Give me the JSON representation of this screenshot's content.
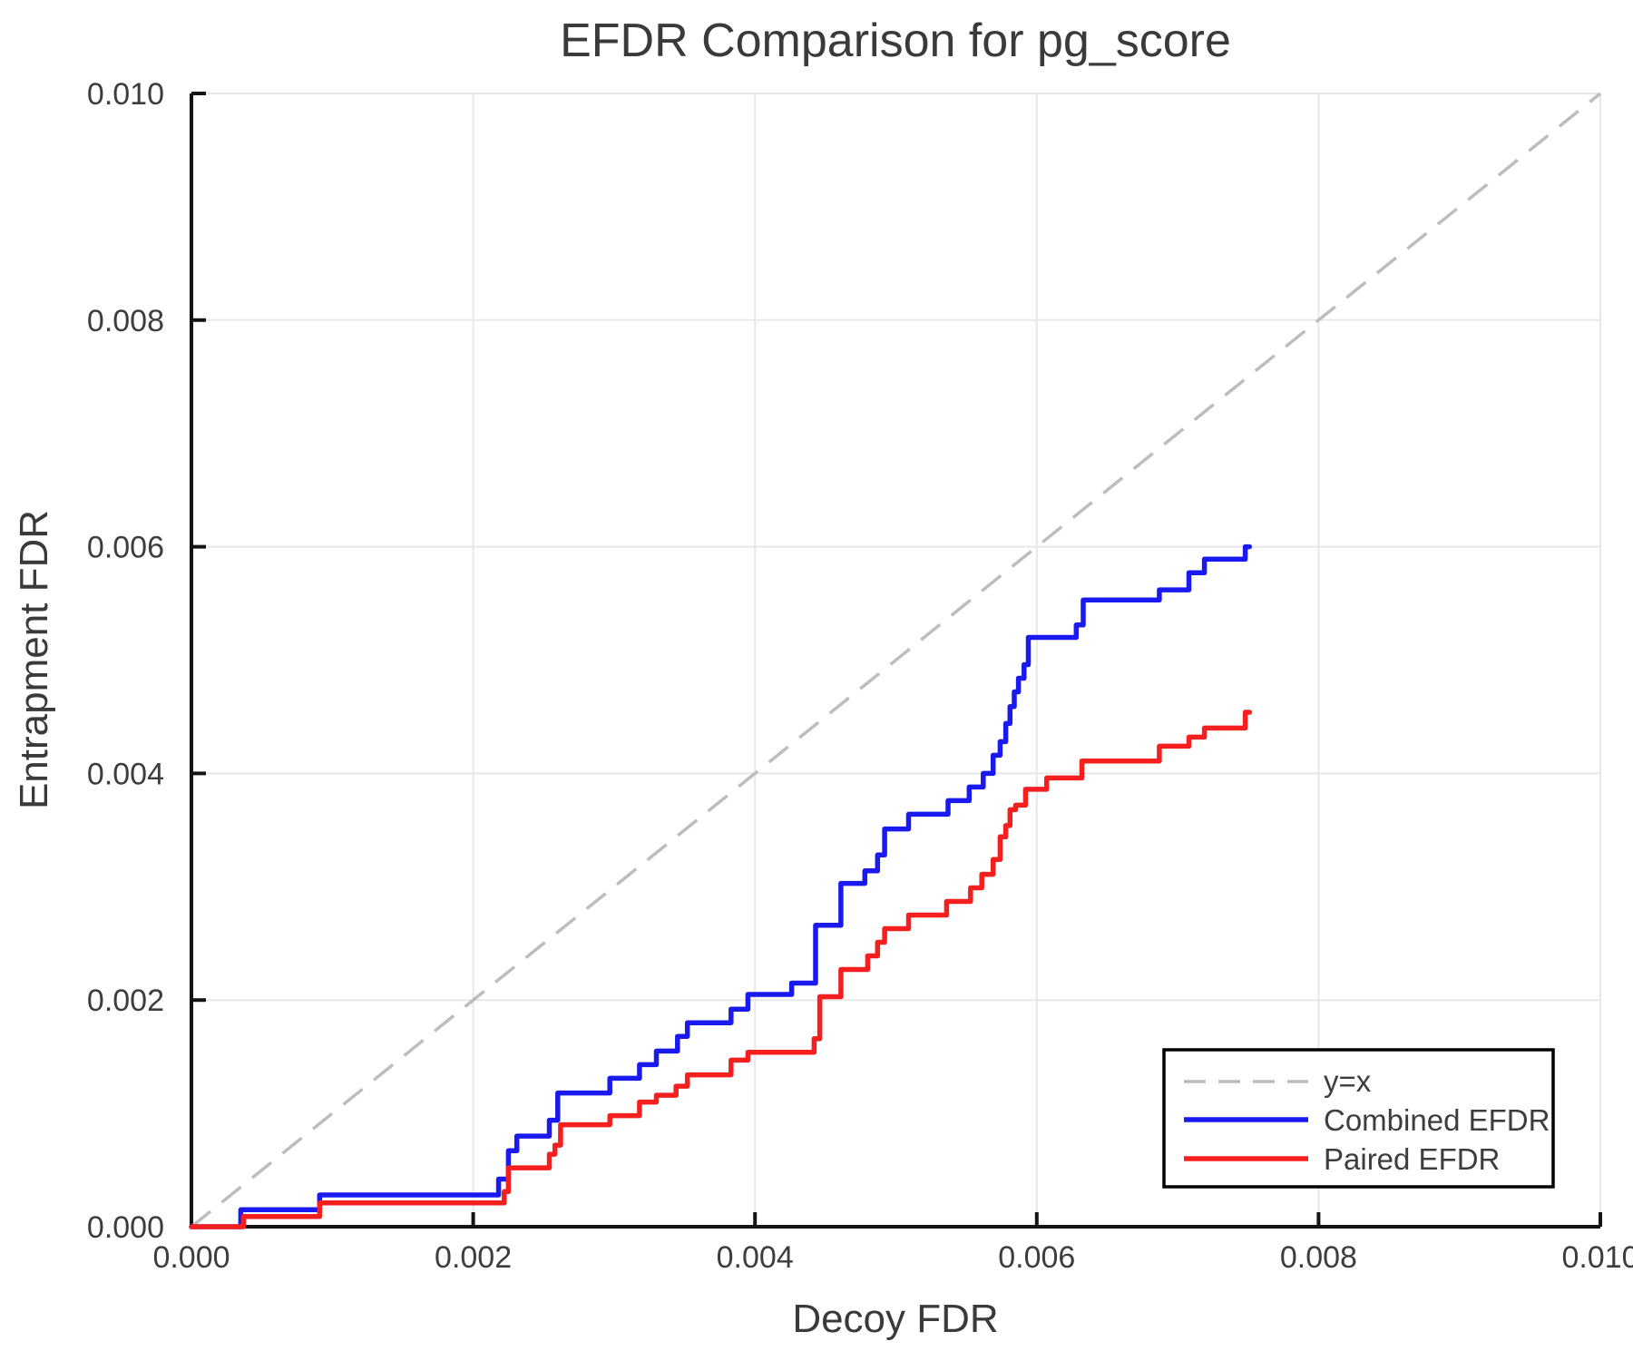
{
  "chart_data": {
    "type": "line",
    "title": "EFDR Comparison for pg_score",
    "xlabel": "Decoy FDR",
    "ylabel": "Entrapment FDR",
    "xlim": [
      0,
      0.01
    ],
    "ylim": [
      0,
      0.01
    ],
    "x_ticks": [
      0,
      0.002,
      0.004,
      0.006,
      0.008,
      0.01
    ],
    "x_tick_labels": [
      "0.000",
      "0.002",
      "0.004",
      "0.006",
      "0.008",
      "0.010"
    ],
    "y_ticks": [
      0,
      0.002,
      0.004,
      0.006,
      0.008,
      0.01
    ],
    "y_tick_labels": [
      "0.000",
      "0.002",
      "0.004",
      "0.006",
      "0.008",
      "0.010"
    ],
    "grid": true,
    "legend_position": "lower right",
    "reference_line": {
      "label": "y=x",
      "from": [
        0,
        0
      ],
      "to": [
        0.01,
        0.01
      ],
      "color": "#bdbdbd",
      "dashed": true
    },
    "series": [
      {
        "name": "Combined EFDR",
        "color": "#1a1af0",
        "step": "post",
        "end_x": 0.00751,
        "points": [
          [
            0.0,
            0.0
          ],
          [
            0.00035,
            0.00015
          ],
          [
            0.00091,
            0.00028
          ],
          [
            0.00218,
            0.00042
          ],
          [
            0.00225,
            0.00067
          ],
          [
            0.00231,
            0.0008
          ],
          [
            0.00254,
            0.00094
          ],
          [
            0.0026,
            0.00118
          ],
          [
            0.00297,
            0.00131
          ],
          [
            0.00318,
            0.00143
          ],
          [
            0.0033,
            0.00155
          ],
          [
            0.00345,
            0.00168
          ],
          [
            0.00352,
            0.0018
          ],
          [
            0.00383,
            0.00192
          ],
          [
            0.00395,
            0.00205
          ],
          [
            0.00426,
            0.00215
          ],
          [
            0.00443,
            0.00266
          ],
          [
            0.00461,
            0.00303
          ],
          [
            0.00478,
            0.00314
          ],
          [
            0.00487,
            0.00328
          ],
          [
            0.00492,
            0.00351
          ],
          [
            0.00509,
            0.00364
          ],
          [
            0.00537,
            0.00376
          ],
          [
            0.00552,
            0.00388
          ],
          [
            0.00562,
            0.004
          ],
          [
            0.00569,
            0.00416
          ],
          [
            0.00574,
            0.00428
          ],
          [
            0.00578,
            0.00444
          ],
          [
            0.00581,
            0.00459
          ],
          [
            0.00584,
            0.00472
          ],
          [
            0.00587,
            0.00484
          ],
          [
            0.00591,
            0.00496
          ],
          [
            0.00594,
            0.0052
          ],
          [
            0.00628,
            0.00531
          ],
          [
            0.00633,
            0.00553
          ],
          [
            0.00687,
            0.00562
          ],
          [
            0.00708,
            0.00577
          ],
          [
            0.00719,
            0.00589
          ],
          [
            0.00748,
            0.006
          ]
        ]
      },
      {
        "name": "Paired EFDR",
        "color": "#f51f1f",
        "step": "post",
        "end_x": 0.00751,
        "points": [
          [
            0.0,
            0.0
          ],
          [
            0.00037,
            9e-05
          ],
          [
            0.00091,
            0.00021
          ],
          [
            0.00222,
            0.00031
          ],
          [
            0.00225,
            0.00052
          ],
          [
            0.00254,
            0.00064
          ],
          [
            0.00258,
            0.00072
          ],
          [
            0.00262,
            0.0009
          ],
          [
            0.00297,
            0.00098
          ],
          [
            0.00318,
            0.0011
          ],
          [
            0.0033,
            0.00116
          ],
          [
            0.00344,
            0.00124
          ],
          [
            0.00352,
            0.00134
          ],
          [
            0.00383,
            0.00147
          ],
          [
            0.00395,
            0.00154
          ],
          [
            0.00442,
            0.00166
          ],
          [
            0.00446,
            0.00203
          ],
          [
            0.00461,
            0.00227
          ],
          [
            0.0048,
            0.00239
          ],
          [
            0.00487,
            0.00251
          ],
          [
            0.00492,
            0.00263
          ],
          [
            0.00509,
            0.00275
          ],
          [
            0.00536,
            0.00287
          ],
          [
            0.00553,
            0.00299
          ],
          [
            0.00561,
            0.00311
          ],
          [
            0.00569,
            0.00324
          ],
          [
            0.00574,
            0.00344
          ],
          [
            0.00578,
            0.00354
          ],
          [
            0.00581,
            0.00368
          ],
          [
            0.00585,
            0.00372
          ],
          [
            0.00592,
            0.00386
          ],
          [
            0.00607,
            0.00396
          ],
          [
            0.00632,
            0.00411
          ],
          [
            0.00687,
            0.00424
          ],
          [
            0.00708,
            0.00432
          ],
          [
            0.00719,
            0.0044
          ],
          [
            0.00748,
            0.00454
          ]
        ]
      }
    ]
  }
}
